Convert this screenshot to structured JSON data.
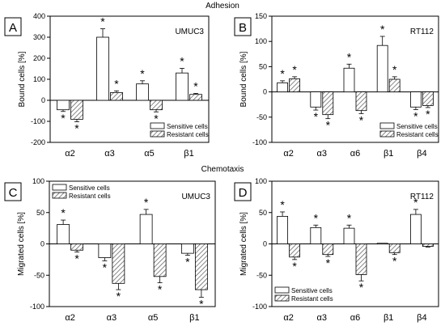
{
  "figure": {
    "adhesion_title": "Adhesion",
    "chemotaxis_title": "Chemotaxis"
  },
  "chart_data": [
    {
      "type": "bar",
      "panel": "A",
      "cell_line": "UMUC3",
      "ylabel": "Bound cells [%]",
      "ylim": [
        -200,
        400
      ],
      "yticks": [
        -200,
        -100,
        0,
        100,
        200,
        300,
        400
      ],
      "categories": [
        "α2",
        "α3",
        "α5",
        "β1"
      ],
      "legend_position": "bottom-right",
      "series": [
        {
          "name": "Sensitive cells",
          "pattern": "open",
          "values": [
            -45,
            300,
            78,
            130
          ],
          "errors": [
            8,
            40,
            15,
            22
          ],
          "significant": [
            true,
            true,
            true,
            true
          ]
        },
        {
          "name": "Resistant cells",
          "pattern": "hatched",
          "values": [
            -90,
            37,
            -45,
            28
          ],
          "errors": [
            12,
            8,
            10,
            5
          ],
          "significant": [
            true,
            true,
            true,
            true
          ]
        }
      ]
    },
    {
      "type": "bar",
      "panel": "B",
      "cell_line": "RT112",
      "ylabel": "Bound cells [%]",
      "ylim": [
        -100,
        150
      ],
      "yticks": [
        -100,
        -50,
        0,
        50,
        100,
        150
      ],
      "categories": [
        "α2",
        "α3",
        "α6",
        "β1",
        "β4"
      ],
      "legend_position": "bottom-right",
      "series": [
        {
          "name": "Sensitive cells",
          "pattern": "open",
          "values": [
            18,
            -30,
            47,
            92,
            -30
          ],
          "errors": [
            4,
            6,
            8,
            18,
            5
          ],
          "significant": [
            true,
            true,
            true,
            true,
            true
          ]
        },
        {
          "name": "Resistant cells",
          "pattern": "hatched",
          "values": [
            26,
            -45,
            -37,
            25,
            -27
          ],
          "errors": [
            4,
            8,
            6,
            5,
            4
          ],
          "significant": [
            true,
            true,
            true,
            true,
            true
          ]
        }
      ]
    },
    {
      "type": "bar",
      "panel": "C",
      "cell_line": "UMUC3",
      "ylabel": "Migrated cells [%]",
      "ylim": [
        -100,
        100
      ],
      "yticks": [
        -100,
        -50,
        0,
        50,
        100
      ],
      "categories": [
        "α2",
        "α3",
        "α5",
        "β1"
      ],
      "legend_position": "top-left",
      "series": [
        {
          "name": "Sensitive cells",
          "pattern": "open",
          "values": [
            31,
            -22,
            47,
            -15
          ],
          "errors": [
            7,
            5,
            8,
            3
          ],
          "significant": [
            true,
            true,
            true,
            true
          ]
        },
        {
          "name": "Resistant cells",
          "pattern": "hatched",
          "values": [
            -10,
            -63,
            -52,
            -73
          ],
          "errors": [
            3,
            10,
            10,
            12
          ],
          "significant": [
            true,
            true,
            true,
            true
          ]
        }
      ]
    },
    {
      "type": "bar",
      "panel": "D",
      "cell_line": "RT112",
      "ylabel": "Migrated cells [%]",
      "ylim": [
        -100,
        100
      ],
      "yticks": [
        -100,
        -50,
        0,
        50,
        100
      ],
      "categories": [
        "α2",
        "α3",
        "α6",
        "β1",
        "β4"
      ],
      "legend_position": "bottom-left",
      "series": [
        {
          "name": "Sensitive cells",
          "pattern": "open",
          "values": [
            44,
            26,
            25,
            1,
            47
          ],
          "errors": [
            7,
            4,
            5,
            0,
            8
          ],
          "significant": [
            true,
            true,
            true,
            false,
            true
          ]
        },
        {
          "name": "Resistant cells",
          "pattern": "hatched",
          "values": [
            -21,
            -17,
            -49,
            -14,
            -4
          ],
          "errors": [
            4,
            3,
            10,
            3,
            1
          ],
          "significant": [
            true,
            true,
            true,
            true,
            false
          ]
        }
      ]
    }
  ]
}
